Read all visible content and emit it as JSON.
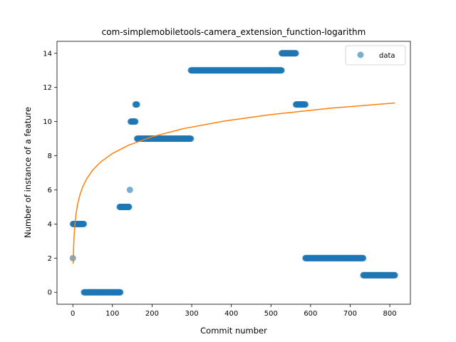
{
  "chart_data": {
    "type": "scatter",
    "title": "com-simplemobiletools-camera_extension_function-logarithm",
    "xlabel": "Commit number",
    "ylabel": "Number of instance of a feature",
    "xlim": [
      -40,
      852
    ],
    "ylim": [
      -0.7,
      14.7
    ],
    "xticks": [
      0,
      100,
      200,
      300,
      400,
      500,
      600,
      700,
      800
    ],
    "yticks": [
      0,
      2,
      4,
      6,
      8,
      10,
      12,
      14
    ],
    "grid": false,
    "legend": {
      "position": "top-right",
      "entries": [
        "data"
      ]
    },
    "colors": {
      "data": "#1f77b4",
      "fit": "#ff7f0e"
    },
    "series": [
      {
        "name": "data",
        "kind": "scatter",
        "segments": [
          {
            "x_start": 0,
            "x_end": 0,
            "y": 2
          },
          {
            "x_start": 0,
            "x_end": 28,
            "y": 4
          },
          {
            "x_start": 28,
            "x_end": 120,
            "y": 0
          },
          {
            "x_start": 118,
            "x_end": 142,
            "y": 5
          },
          {
            "x_start": 144,
            "x_end": 144,
            "y": 6
          },
          {
            "x_start": 146,
            "x_end": 158,
            "y": 10
          },
          {
            "x_start": 158,
            "x_end": 162,
            "y": 11
          },
          {
            "x_start": 162,
            "x_end": 298,
            "y": 9
          },
          {
            "x_start": 298,
            "x_end": 527,
            "y": 13
          },
          {
            "x_start": 527,
            "x_end": 563,
            "y": 14
          },
          {
            "x_start": 563,
            "x_end": 587,
            "y": 11
          },
          {
            "x_start": 587,
            "x_end": 733,
            "y": 2
          },
          {
            "x_start": 733,
            "x_end": 813,
            "y": 1
          }
        ]
      },
      {
        "name": "",
        "kind": "line",
        "x": [
          1,
          2,
          3,
          5,
          8,
          12,
          18,
          25,
          35,
          50,
          70,
          100,
          140,
          200,
          280,
          380,
          500,
          650,
          813
        ],
        "y": [
          1.68,
          2.65,
          3.22,
          3.92,
          4.57,
          5.15,
          5.72,
          6.18,
          6.65,
          7.16,
          7.63,
          8.13,
          8.61,
          9.11,
          9.59,
          10.02,
          10.41,
          10.78,
          11.09
        ]
      }
    ]
  }
}
